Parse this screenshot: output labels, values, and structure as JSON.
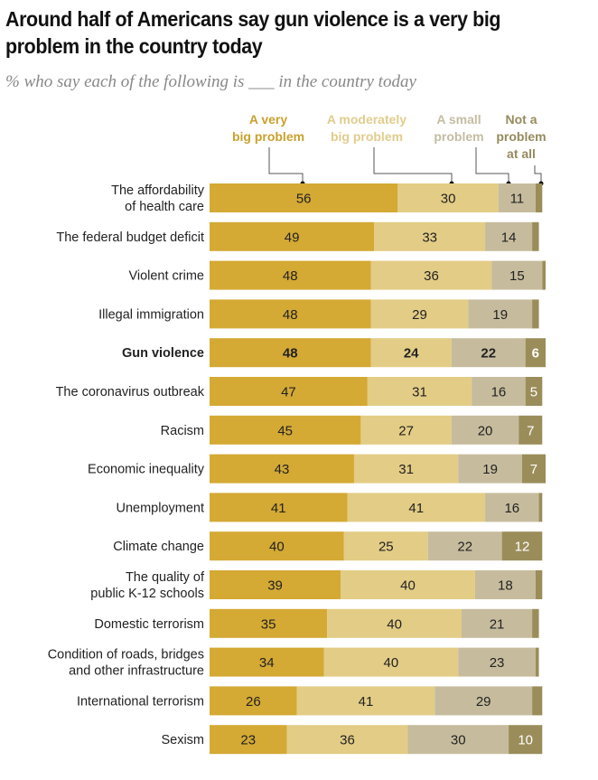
{
  "title": "Around half of Americans say gun violence is a very big problem in the country today",
  "subtitle": "% who say each of the following is ___ in the country today",
  "colors": {
    "very_big": "#d4a934",
    "moderately_big": "#e3cc85",
    "small": "#c6bc9d",
    "not_at_all": "#9a8d5a",
    "legend_very_big": "#c9a12e",
    "legend_moderately_big": "#e1cc8d",
    "legend_small": "#c4bca3",
    "legend_not_at_all": "#958a5e"
  },
  "chart_data": {
    "type": "bar",
    "orientation": "horizontal",
    "stacked": true,
    "title": "Around half of Americans say gun violence is a very big problem in the country today",
    "subtitle": "% who say each of the following is ___ in the country today",
    "xlabel": "",
    "ylabel": "",
    "xlim": [
      0,
      100
    ],
    "grid": false,
    "legend_position": "top",
    "highlight_category": "Gun violence",
    "categories": [
      "The affordability of health care",
      "The federal budget deficit",
      "Violent crime",
      "Illegal immigration",
      "Gun violence",
      "The coronavirus outbreak",
      "Racism",
      "Economic inequality",
      "Unemployment",
      "Climate change",
      "The quality of public K-12 schools",
      "Domestic terrorism",
      "Condition of roads, bridges and other infrastructure",
      "International terrorism",
      "Sexism"
    ],
    "category_lines": [
      [
        "The affordability",
        "of health care"
      ],
      [
        "The federal budget deficit"
      ],
      [
        "Violent crime"
      ],
      [
        "Illegal immigration"
      ],
      [
        "Gun violence"
      ],
      [
        "The coronavirus outbreak"
      ],
      [
        "Racism"
      ],
      [
        "Economic inequality"
      ],
      [
        "Unemployment"
      ],
      [
        "Climate change"
      ],
      [
        "The quality of",
        "public K-12 schools"
      ],
      [
        "Domestic terrorism"
      ],
      [
        "Condition of roads, bridges",
        "and other infrastructure"
      ],
      [
        "International terrorism"
      ],
      [
        "Sexism"
      ]
    ],
    "series": [
      {
        "name": "A very big problem",
        "legend_lines": [
          "A very",
          "big problem"
        ],
        "values": [
          56,
          49,
          48,
          48,
          48,
          47,
          45,
          43,
          41,
          40,
          39,
          35,
          34,
          26,
          23
        ],
        "labels": [
          "56",
          "49",
          "48",
          "48",
          "48",
          "47",
          "45",
          "43",
          "41",
          "40",
          "39",
          "35",
          "34",
          "26",
          "23"
        ]
      },
      {
        "name": "A moderately big problem",
        "legend_lines": [
          "A moderately",
          "big problem"
        ],
        "values": [
          30,
          33,
          36,
          29,
          24,
          31,
          27,
          31,
          41,
          25,
          40,
          40,
          40,
          41,
          36
        ],
        "labels": [
          "30",
          "33",
          "36",
          "29",
          "24",
          "31",
          "27",
          "31",
          "41",
          "25",
          "40",
          "40",
          "40",
          "41",
          "36"
        ]
      },
      {
        "name": "A small problem",
        "legend_lines": [
          "A small",
          "problem"
        ],
        "values": [
          11,
          14,
          15,
          19,
          22,
          16,
          20,
          19,
          16,
          22,
          18,
          21,
          23,
          29,
          30
        ],
        "labels": [
          "11",
          "14",
          "15",
          "19",
          "22",
          "16",
          "20",
          "19",
          "16",
          "22",
          "18",
          "21",
          "23",
          "29",
          "30"
        ]
      },
      {
        "name": "Not a problem at all",
        "legend_lines": [
          "Not a",
          "problem",
          "at all"
        ],
        "values": [
          2,
          2,
          1,
          2,
          6,
          5,
          7,
          7,
          1,
          12,
          2,
          2,
          1,
          3,
          10
        ],
        "labels": [
          "",
          "",
          "",
          "",
          "6",
          "5",
          "7",
          "7",
          "",
          "12",
          "",
          "",
          "",
          "",
          "10"
        ]
      }
    ]
  }
}
